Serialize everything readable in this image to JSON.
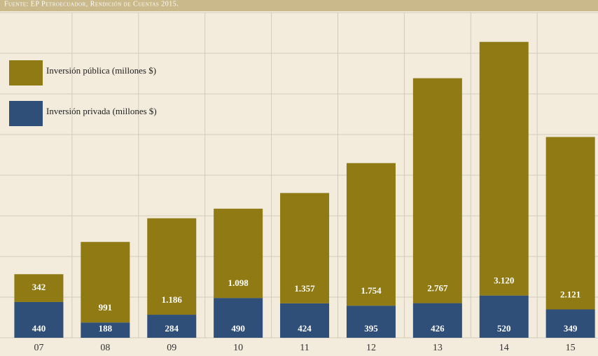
{
  "chart_data": {
    "type": "stacked_bar",
    "subtitle": "Fuente: EP Petroecuador, Rendición de Cuentas 2015.",
    "categories": [
      "07",
      "08",
      "09",
      "10",
      "11",
      "12",
      "13",
      "14",
      "15"
    ],
    "series": [
      {
        "name": "Inversión privada (millones $)",
        "color": "#2f4e78",
        "values": [
          440,
          188,
          284,
          490,
          424,
          395,
          426,
          520,
          349
        ],
        "value_labels": [
          "440",
          "188",
          "284",
          "490",
          "424",
          "395",
          "426",
          "520",
          "349"
        ]
      },
      {
        "name": "Inversión pública (millones $)",
        "color": "#8f7a13",
        "values": [
          342,
          991,
          1186,
          1098,
          1357,
          1754,
          2767,
          3120,
          2121
        ],
        "value_labels": [
          "342",
          "991",
          "1.186",
          "1.098",
          "1.357",
          "1.754",
          "2.767",
          "3.120",
          "2.121"
        ]
      }
    ],
    "ylim": [
      0,
      4000
    ],
    "yticks": [
      0,
      500,
      1000,
      1500,
      2000,
      2500,
      3000,
      3500,
      4000
    ],
    "grid": true
  }
}
